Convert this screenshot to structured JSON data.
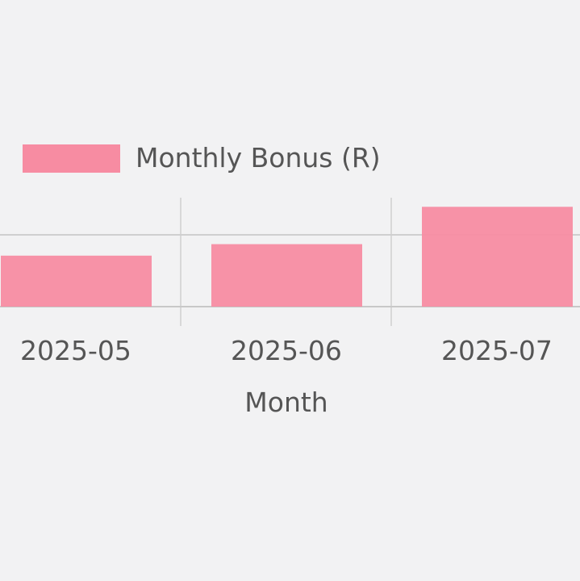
{
  "chart_data": {
    "type": "bar",
    "categories": [
      "2025-05",
      "2025-06",
      "2025-07"
    ],
    "series": [
      {
        "name": "Monthly Bonus (R)",
        "values": [
          0.71,
          0.87,
          1.39
        ],
        "color": "#f78ca2"
      }
    ],
    "xlabel": "Month",
    "ylabel": "",
    "ylim": [
      0,
      1.4
    ],
    "grid": true,
    "legend": "top-left"
  }
}
